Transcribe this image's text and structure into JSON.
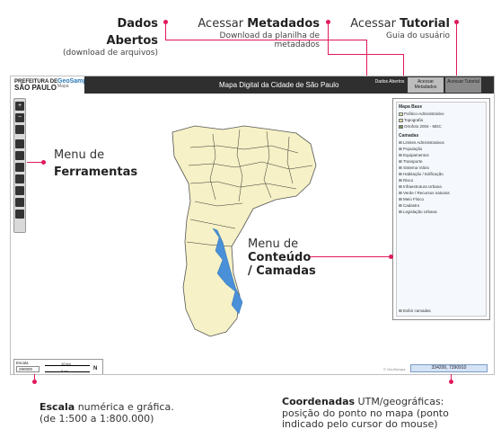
{
  "annotations": {
    "dados_abertos": {
      "title": "Dados Abertos",
      "sub": "(download de arquivos)"
    },
    "metadados": {
      "prefix": "Acessar ",
      "bold": "Metadados",
      "sub": "Download da planilha de metadados"
    },
    "tutorial": {
      "prefix": "Acessar ",
      "bold": "Tutorial",
      "sub": "Guia do usuário"
    },
    "ferramentas": {
      "line1": "Menu de",
      "line2": "Ferramentas"
    },
    "conteudo": {
      "line1": "Menu de",
      "line2": "Conteúdo",
      "line3": "/ Camadas"
    },
    "escala": {
      "bold": "Escala",
      "rest": " numérica e gráfica.",
      "line2": "(de 1:500 a 1:800.000)"
    },
    "coordenadas": {
      "bold": "Coordenadas",
      "rest": " UTM/geográficas:",
      "line2": "posição do ponto no mapa (ponto",
      "line3": "indicado pelo cursor do mouse)"
    }
  },
  "app": {
    "logo_pref_line1": "PREFEITURA DE",
    "logo_pref_line2": "SÃO PAULO",
    "logo_geo": "GeoSampa",
    "logo_geo_sub": "Mapa",
    "title": "Mapa Digital da Cidade de São Paulo",
    "btn_dados": "Dados Abertos",
    "btn_metadados": "Acessar Metadados",
    "btn_tutorial": "Acessar Tutorial"
  },
  "toolbar": {
    "zoom_in": "+",
    "zoom_out": "−"
  },
  "panel": {
    "base_title": "Mapa Base",
    "base_items": [
      "Político-Administrativo",
      "Topografia",
      "Ortofoto 2004 - MDC"
    ],
    "layers_title": "Camadas",
    "layers": [
      "Limites Administrativos",
      "População",
      "Equipamentos",
      "Transporte",
      "Sistema Viário",
      "Habitação / Edificação",
      "Risco",
      "Infraestrutura Urbana",
      "Verde / Recursos naturais",
      "Meio Físico",
      "Cadastro",
      "Legislação Urbana"
    ],
    "footer": "Exibir camadas"
  },
  "scale": {
    "label": "Escala",
    "value": "290000",
    "bar_label": "10 km",
    "bar_sub": "5 mi"
  },
  "coords": {
    "value": "334200, 7390910"
  },
  "copyright": "© GeoSampa",
  "colors": {
    "accent": "#e0195a",
    "map_fill": "#f6f1c6",
    "water": "#4a90d9",
    "topbar": "#2f2f2f"
  }
}
